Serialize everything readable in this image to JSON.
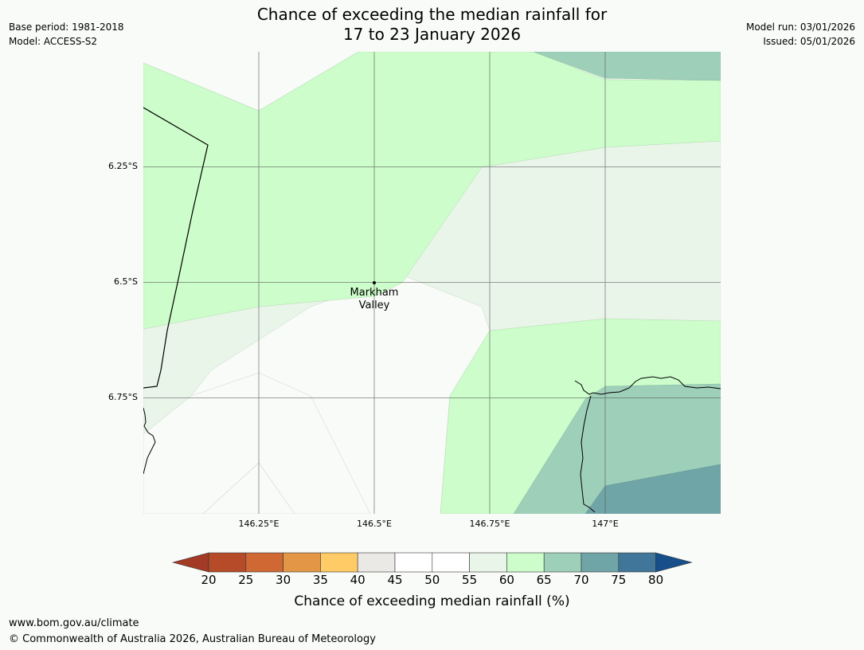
{
  "title": {
    "line1": "Chance of exceeding the median rainfall for",
    "line2": "17 to 23 January 2026"
  },
  "meta_left": {
    "base_period": "Base period: 1981-2018",
    "model": "Model: ACCESS-S2"
  },
  "meta_right": {
    "model_run": "Model run: 03/01/2026",
    "issued": "Issued: 05/01/2026"
  },
  "map": {
    "lat_labels": [
      "6.25°S",
      "6.5°S",
      "6.75°S"
    ],
    "lon_labels": [
      "146.25°E",
      "146.5°E",
      "146.75°E",
      "147°E"
    ],
    "place": {
      "line1": "Markham",
      "line2": "Valley"
    },
    "colors": {
      "band_55_60": "#eaf5ea",
      "band_60_65": "#ccfdca",
      "band_65_70": "#9ecfb9",
      "band_70_75": "#70a5a8",
      "band_50_55": "#f9fbf8"
    }
  },
  "colorbar": {
    "ticks": [
      "20",
      "25",
      "30",
      "35",
      "40",
      "45",
      "50",
      "55",
      "60",
      "65",
      "70",
      "75",
      "80"
    ],
    "colors": [
      "#a33a26",
      "#b54b28",
      "#d06833",
      "#e49647",
      "#fecb66",
      "#ebe9e6",
      "#ffffff",
      "#ffffff",
      "#eaf5ea",
      "#ccfdca",
      "#9ecfb9",
      "#70a5a8",
      "#3f7699",
      "#174f8b"
    ],
    "label": "Chance of exceeding median rainfall (%)"
  },
  "footer": {
    "url": "www.bom.gov.au/climate",
    "copyright": "© Commonwealth of Australia 2026, Australian Bureau of Meteorology"
  }
}
